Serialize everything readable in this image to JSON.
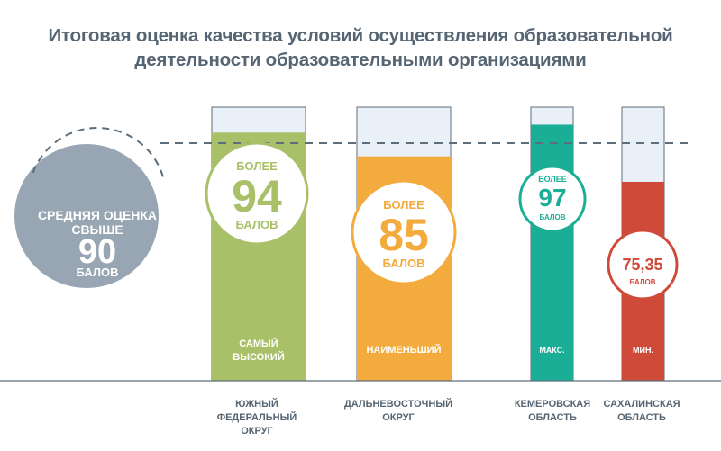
{
  "title_line1": "Итоговая оценка качества условий осуществления образовательной",
  "title_line2": "деятельности образовательными организациями",
  "average": {
    "percent": "61%",
    "label_line1": "СРЕДНЯЯ ОЦЕНКА",
    "label_line2": "СВЫШЕ",
    "value": "90",
    "unit": "БАЛОВ",
    "color": "#97a6b2"
  },
  "colors": {
    "text_gray": "#566573",
    "dash_line": "#5d6d7b",
    "container_stroke": "#5d6d7b",
    "container_fill": "#e9f0f7",
    "axis": "#5d6d7b"
  },
  "chart_data": {
    "type": "bar",
    "categories": [
      [
        "ЮЖНЫЙ",
        "ФЕДЕРАЛЬНЫЙ",
        "ОКРУГ"
      ],
      [
        "ДАЛЬНЕВОСТОЧНЫЙ",
        "ОКРУГ"
      ],
      [
        "КЕМЕРОВСКАЯ",
        "ОБЛАСТЬ"
      ],
      [
        "САХАЛИНСКАЯ",
        "ОБЛАСТЬ"
      ]
    ],
    "values": [
      94,
      85,
      97,
      75.35
    ],
    "ylim": [
      0,
      100
    ],
    "reference_line": 90,
    "bars": [
      {
        "color": "#a8c169",
        "top_label": "БОЛЕЕ",
        "value_label": "94",
        "unit_label": "БАЛОВ",
        "bottom_label": [
          "САМЫЙ",
          "ВЫСОКИЙ"
        ]
      },
      {
        "color": "#f2ab3c",
        "top_label": "БОЛЕЕ",
        "value_label": "85",
        "unit_label": "БАЛОВ",
        "bottom_label": [
          "НАИМЕНЬШИЙ"
        ]
      },
      {
        "color": "#1aae97",
        "top_label": "БОЛЕЕ",
        "value_label": "97",
        "unit_label": "БАЛОВ",
        "bottom_label": [
          "МАКС."
        ]
      },
      {
        "color": "#d04a3a",
        "top_label": "",
        "value_label": "75,35",
        "unit_label": "БАЛОВ",
        "bottom_label": [
          "МИН."
        ]
      }
    ]
  }
}
